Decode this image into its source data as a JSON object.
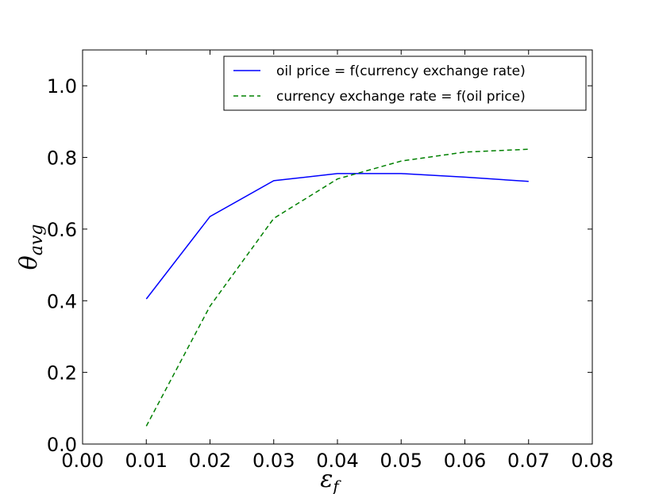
{
  "chart_data": {
    "type": "line",
    "xlabel": "ε_f",
    "ylabel": "θ_avg",
    "xlim": [
      0.0,
      0.08
    ],
    "ylim": [
      0.0,
      1.1
    ],
    "xticks": [
      "0.00",
      "0.01",
      "0.02",
      "0.03",
      "0.04",
      "0.05",
      "0.06",
      "0.07",
      "0.08"
    ],
    "yticks": [
      "0.0",
      "0.2",
      "0.4",
      "0.6",
      "0.8",
      "1.0"
    ],
    "legend_position": "top-right",
    "grid": false,
    "series": [
      {
        "name": "oil price = f(currency exchange rate)",
        "color": "#0000ff",
        "style": "solid",
        "x": [
          0.01,
          0.02,
          0.03,
          0.04,
          0.05,
          0.06,
          0.07
        ],
        "y": [
          0.405,
          0.635,
          0.735,
          0.755,
          0.755,
          0.745,
          0.733
        ]
      },
      {
        "name": "currency exchange rate = f(oil price)",
        "color": "#008000",
        "style": "dashed",
        "x": [
          0.01,
          0.02,
          0.03,
          0.04,
          0.05,
          0.06,
          0.07
        ],
        "y": [
          0.05,
          0.385,
          0.63,
          0.74,
          0.79,
          0.815,
          0.823
        ]
      }
    ]
  }
}
